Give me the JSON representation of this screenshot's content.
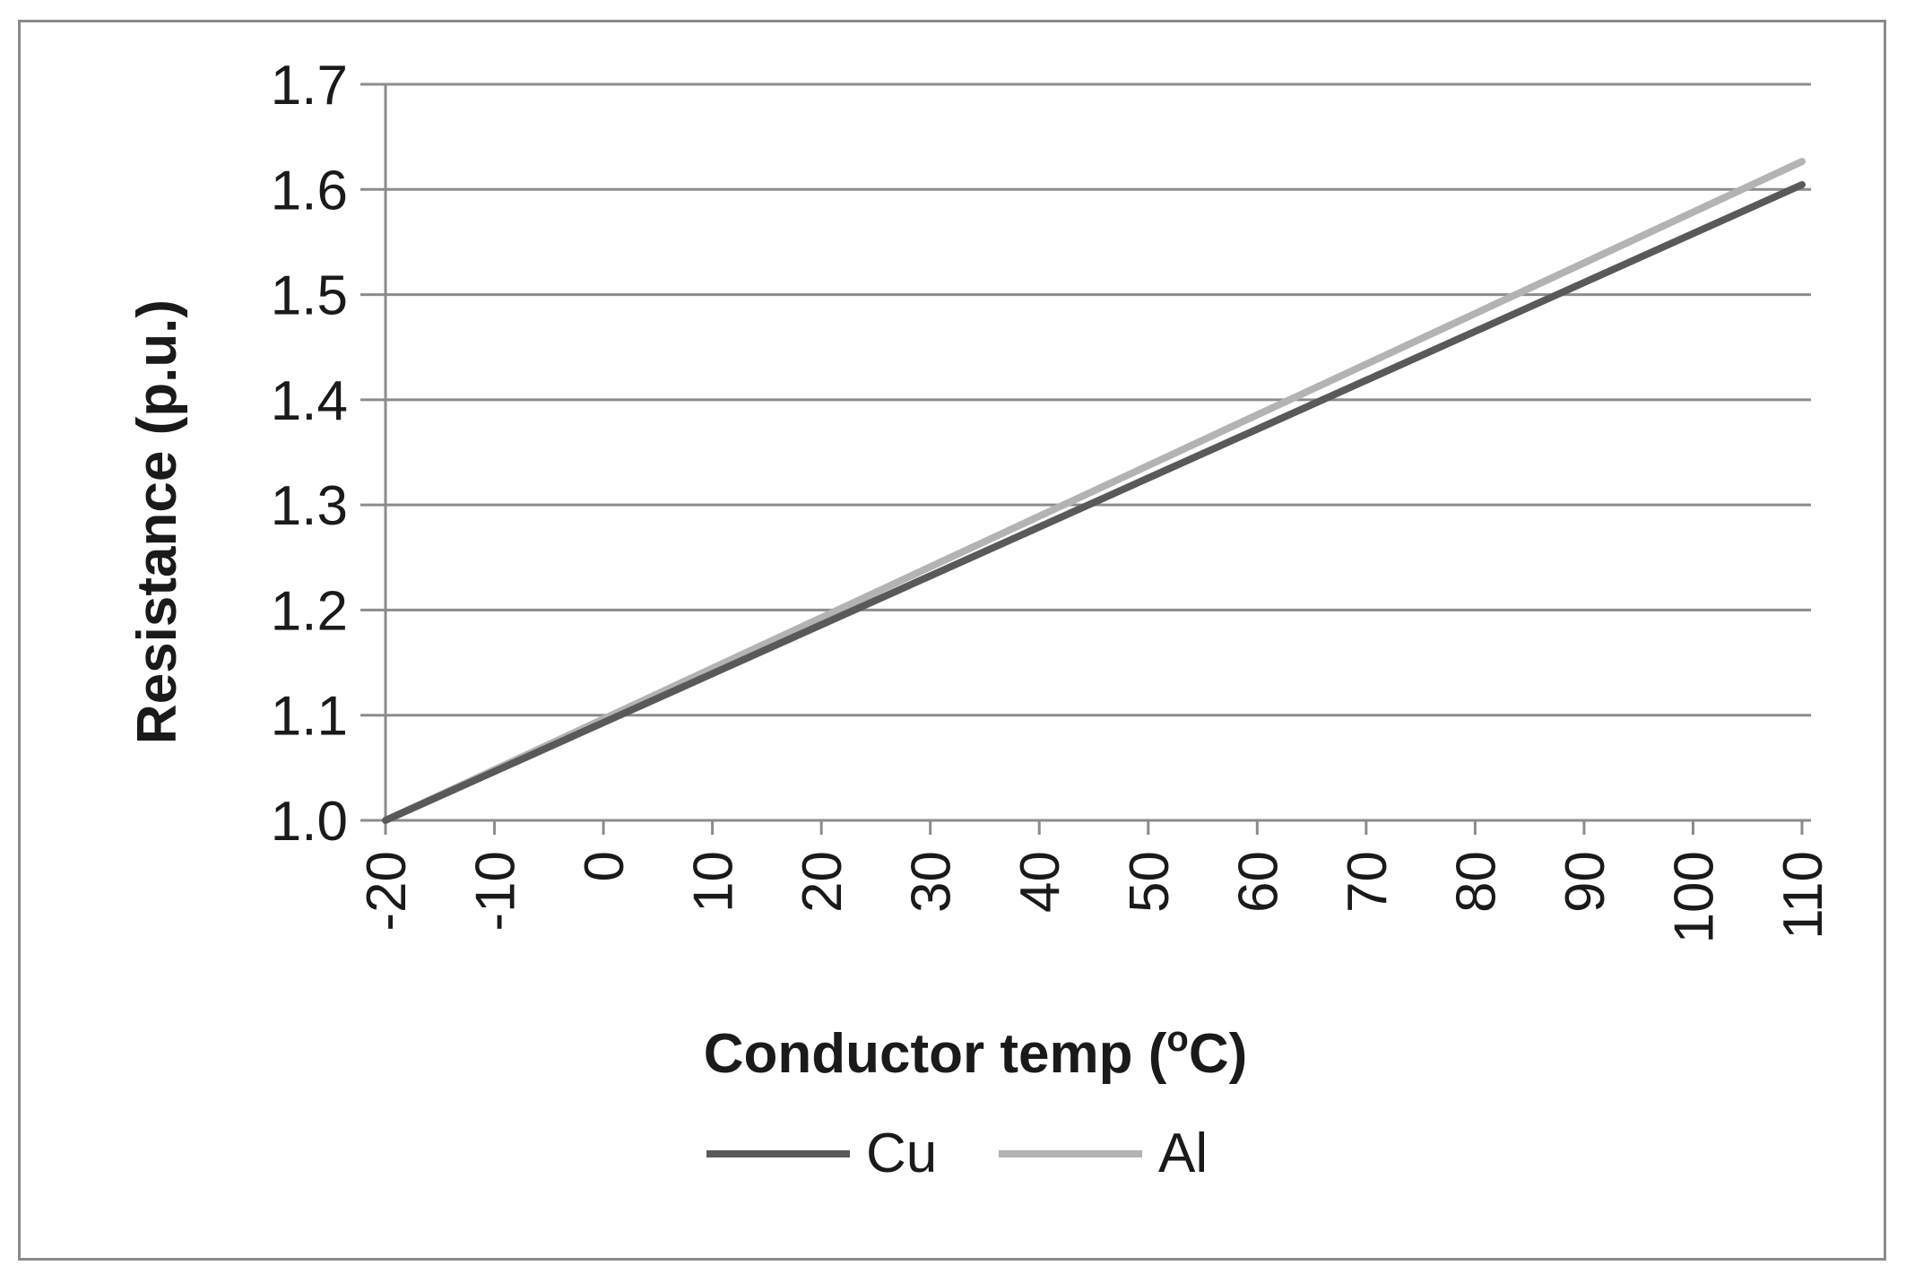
{
  "chart_data": {
    "type": "line",
    "title": "",
    "xlabel": "Conductor temp (",
    "xlabel_superscript": "o",
    "xlabel_suffix": "C)",
    "ylabel": "Resistance (p.u.)",
    "x": [
      -20,
      -10,
      0,
      10,
      20,
      30,
      40,
      50,
      60,
      70,
      80,
      90,
      100,
      110
    ],
    "x_tick_labels": [
      "-20",
      "-10",
      "0",
      "10",
      "20",
      "30",
      "40",
      "50",
      "60",
      "70",
      "80",
      "90",
      "100",
      "110"
    ],
    "y_tick_labels": [
      "1.0",
      "1.1",
      "1.2",
      "1.3",
      "1.4",
      "1.5",
      "1.6",
      "1.7"
    ],
    "xlim": [
      -20,
      110
    ],
    "ylim": [
      1.0,
      1.7
    ],
    "grid": true,
    "legend_position": "bottom-center",
    "series": [
      {
        "name": "Cu",
        "color": "#595959",
        "values": [
          1.0,
          1.0465,
          1.093,
          1.1395,
          1.186,
          1.2325,
          1.279,
          1.3255,
          1.372,
          1.4185,
          1.465,
          1.5115,
          1.558,
          1.6045
        ]
      },
      {
        "name": "Al",
        "color": "#b3b3b3",
        "values": [
          1.0,
          1.0482,
          1.0964,
          1.1446,
          1.1928,
          1.241,
          1.2892,
          1.3374,
          1.3856,
          1.4338,
          1.482,
          1.5302,
          1.5784,
          1.6266
        ]
      }
    ]
  }
}
